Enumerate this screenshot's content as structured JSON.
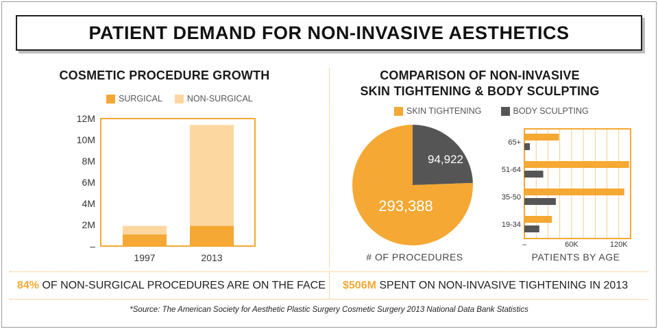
{
  "title": "PATIENT DEMAND FOR NON-INVASIVE AESTHETICS",
  "colors": {
    "accent": "#F5A833",
    "light": "#FDD7A0",
    "dark": "#555555"
  },
  "left": {
    "heading": "COSMETIC PROCEDURE GROWTH",
    "legend": [
      "SURGICAL",
      "NON-SURGICAL"
    ]
  },
  "right": {
    "heading_line1": "COMPARISON OF NON-INVASIVE",
    "heading_line2": "SKIN TIGHTENING & BODY SCULPTING",
    "legend": [
      "SKIN TIGHTENING",
      "BODY SCULPTING"
    ],
    "pie_caption": "# OF PROCEDURES",
    "bar_caption": "PATIENTS BY AGE"
  },
  "chart_data": [
    {
      "type": "bar",
      "stacked": true,
      "title": "COSMETIC PROCEDURE GROWTH",
      "categories": [
        "1997",
        "2013"
      ],
      "series": [
        {
          "name": "SURGICAL",
          "values": [
            1.1,
            1.9
          ]
        },
        {
          "name": "NON-SURGICAL",
          "values": [
            0.8,
            9.5
          ]
        }
      ],
      "ylim": [
        0,
        12
      ],
      "yticks": [
        "–",
        "2M",
        "4M",
        "6M",
        "8M",
        "10M",
        "12M"
      ],
      "ytick_values": [
        0,
        2,
        4,
        6,
        8,
        10,
        12
      ]
    },
    {
      "type": "pie",
      "title": "# OF PROCEDURES",
      "labels": [
        "SKIN TIGHTENING",
        "BODY SCULPTING"
      ],
      "values": [
        293388,
        94922
      ],
      "value_labels": [
        "293,388",
        "94,922"
      ]
    },
    {
      "type": "bar",
      "orientation": "horizontal",
      "title": "PATIENTS BY AGE",
      "categories": [
        "65+",
        "51-64",
        "35-50",
        "19-34"
      ],
      "series": [
        {
          "name": "SKIN TIGHTENING",
          "values": [
            44000,
            133000,
            127000,
            35000
          ]
        },
        {
          "name": "BODY SCULPTING",
          "values": [
            7000,
            24000,
            40000,
            19000
          ]
        }
      ],
      "xlim": [
        0,
        135000
      ],
      "xticks": [
        "–",
        "60K",
        "120K"
      ],
      "xtick_values": [
        0,
        60000,
        120000
      ]
    }
  ],
  "facts": {
    "left_highlight": "84%",
    "left_text": " OF NON-SURGICAL PROCEDURES ARE ON THE FACE",
    "right_highlight": "$506M",
    "right_text": " SPENT ON NON-INVASIVE TIGHTENING IN 2013"
  },
  "source": "*Source: The American Society for Aesthetic Plastic Surgery Cosmetic Surgery 2013 National Data Bank Statistics"
}
